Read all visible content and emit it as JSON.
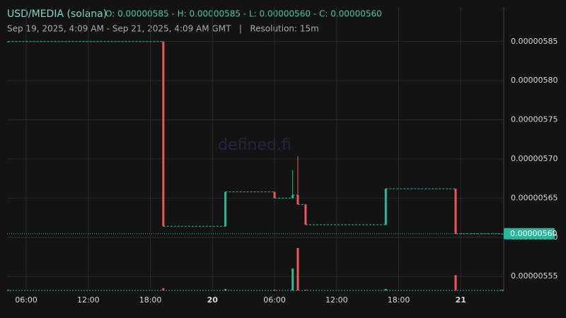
{
  "chart_data": {
    "type": "candlestick",
    "title": "USD/MEDIA (solana)",
    "ohlc_text": "O: 0.00000585 - H: 0.00000585 - L: 0.00000560 - C: 0.00000560",
    "subtitle": "Sep 19, 2025, 4:09 AM - Sep 21, 2025, 4:09 AM GMT   |   Resolution: 15m",
    "watermark": "defined.fi",
    "up_color": "#26b89a",
    "down_color": "#f0555a",
    "grid": true,
    "xlim": [
      "2025-09-19T04:09",
      "2025-09-21T04:09"
    ],
    "xticks": [
      {
        "value": "2025-09-19T06:00",
        "label": "06:00"
      },
      {
        "value": "2025-09-19T12:00",
        "label": "12:00"
      },
      {
        "value": "2025-09-19T18:00",
        "label": "18:00"
      },
      {
        "value": "2025-09-20T00:00",
        "label": "20"
      },
      {
        "value": "2025-09-20T06:00",
        "label": "06:00"
      },
      {
        "value": "2025-09-20T12:00",
        "label": "12:00"
      },
      {
        "value": "2025-09-20T18:00",
        "label": "18:00"
      },
      {
        "value": "2025-09-21T00:00",
        "label": "21"
      }
    ],
    "ylim": [
      5.524e-06,
      5.894e-06
    ],
    "yticks": [
      {
        "value": 5.55e-06,
        "label": "0.00000555"
      },
      {
        "value": 5.6e-06,
        "label": "0.00000560"
      },
      {
        "value": 5.65e-06,
        "label": "0.00000565"
      },
      {
        "value": 5.7e-06,
        "label": "0.00000570"
      },
      {
        "value": 5.75e-06,
        "label": "0.00000575"
      },
      {
        "value": 5.8e-06,
        "label": "0.00000580"
      },
      {
        "value": 5.85e-06,
        "label": "0.00000585"
      }
    ],
    "last_price": {
      "value": 5.6045e-06,
      "label": "0.00000560"
    },
    "x": [
      "2025-09-19T04:15",
      "2025-09-19T19:15",
      "2025-09-20T01:15",
      "2025-09-20T06:00",
      "2025-09-20T07:45",
      "2025-09-20T08:15",
      "2025-09-20T09:00",
      "2025-09-20T16:45",
      "2025-09-20T23:30",
      "2025-09-21T04:00"
    ],
    "open": [
      5.85e-06,
      5.85e-06,
      5.614e-06,
      5.658e-06,
      5.65e-06,
      5.654e-06,
      5.642e-06,
      5.616e-06,
      5.662e-06,
      5.6045e-06
    ],
    "high": [
      5.85e-06,
      5.85e-06,
      5.658e-06,
      5.658e-06,
      5.686e-06,
      5.704e-06,
      5.642e-06,
      5.662e-06,
      5.662e-06,
      5.6045e-06
    ],
    "low": [
      5.85e-06,
      5.614e-06,
      5.614e-06,
      5.65e-06,
      5.65e-06,
      5.642e-06,
      5.616e-06,
      5.616e-06,
      5.6045e-06,
      5.6045e-06
    ],
    "close": [
      5.85e-06,
      5.614e-06,
      5.658e-06,
      5.65e-06,
      5.654e-06,
      5.642e-06,
      5.616e-06,
      5.662e-06,
      5.6045e-06,
      5.6045e-06
    ],
    "volume": [
      1,
      3,
      2,
      1,
      30,
      58,
      1,
      2,
      21,
      1
    ]
  }
}
